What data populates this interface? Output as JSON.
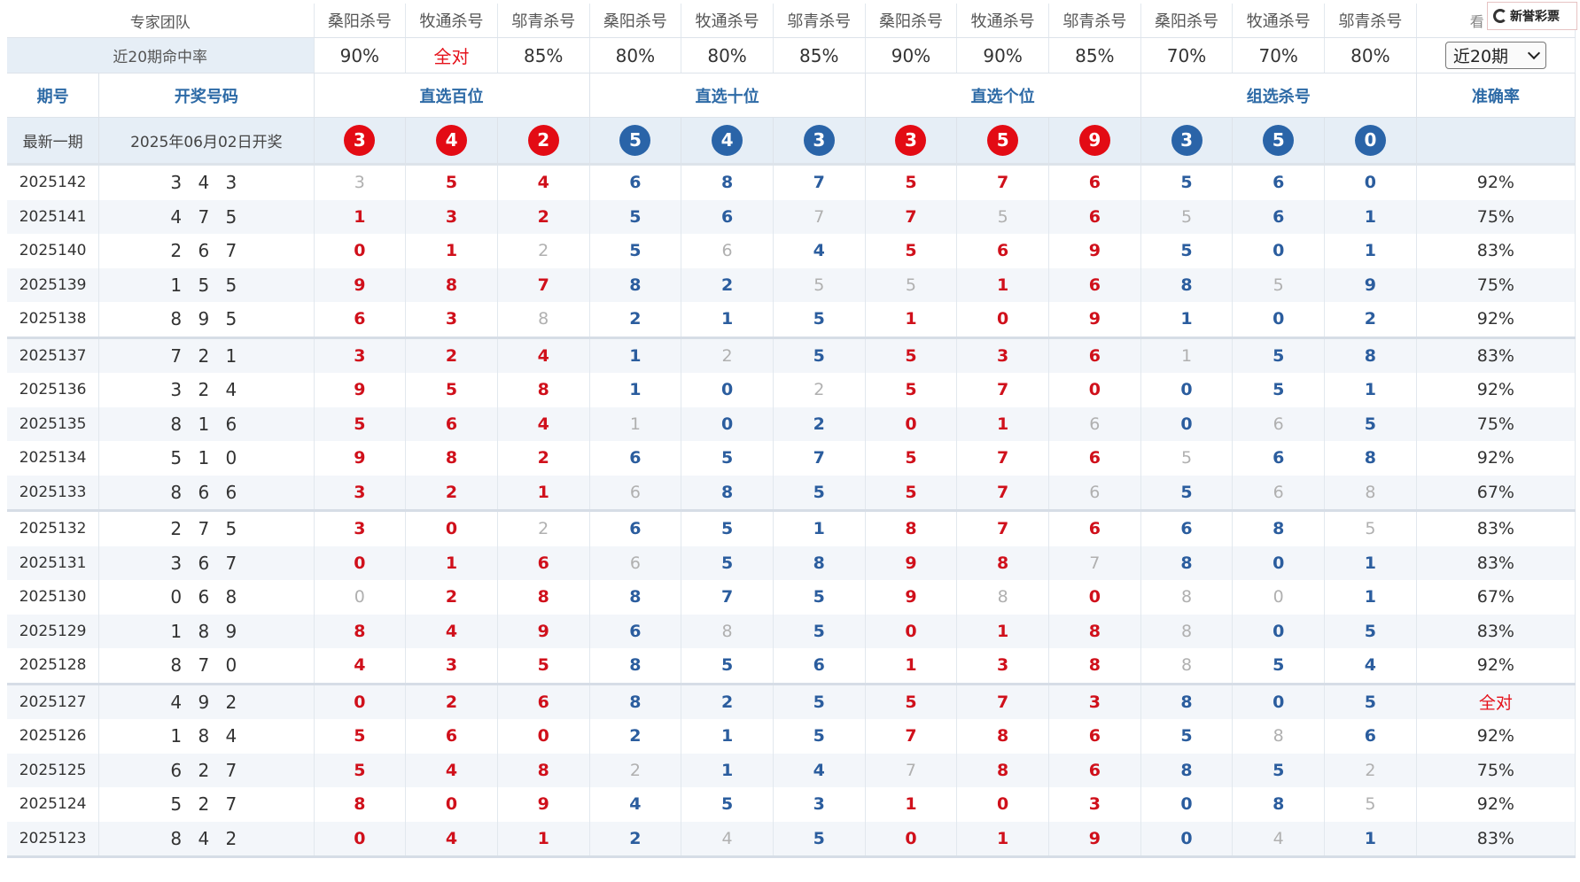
{
  "expert_row": {
    "label": "专家团队",
    "experts": [
      "桑阳杀号",
      "牧通杀号",
      "邬青杀号",
      "桑阳杀号",
      "牧通杀号",
      "邬青杀号",
      "桑阳杀号",
      "牧通杀号",
      "邬青杀号",
      "桑阳杀号",
      "牧通杀号",
      "邬青杀号"
    ],
    "last_partial": "看"
  },
  "rate_row": {
    "label": "近20期命中率",
    "rates": [
      "90%",
      "全对",
      "85%",
      "80%",
      "80%",
      "85%",
      "90%",
      "90%",
      "85%",
      "70%",
      "70%",
      "80%"
    ],
    "period_select": "近20期"
  },
  "header": {
    "period": "期号",
    "draw": "开奖号码",
    "groups": [
      "直选百位",
      "直选十位",
      "直选个位",
      "组选杀号"
    ],
    "accuracy": "准确率"
  },
  "latest": {
    "label": "最新一期",
    "date": "2025年06月02日开奖",
    "balls": [
      {
        "v": "3",
        "c": "red"
      },
      {
        "v": "4",
        "c": "red"
      },
      {
        "v": "2",
        "c": "red"
      },
      {
        "v": "5",
        "c": "blue"
      },
      {
        "v": "4",
        "c": "blue"
      },
      {
        "v": "3",
        "c": "blue"
      },
      {
        "v": "3",
        "c": "red"
      },
      {
        "v": "5",
        "c": "red"
      },
      {
        "v": "9",
        "c": "red"
      },
      {
        "v": "3",
        "c": "blue"
      },
      {
        "v": "5",
        "c": "blue"
      },
      {
        "v": "0",
        "c": "blue"
      }
    ]
  },
  "brand": {
    "name": "新誉彩票"
  },
  "rows": [
    {
      "period": "2025142",
      "nums": "3 4 3",
      "cells": [
        "3",
        "5",
        "4",
        "6",
        "8",
        "7",
        "5",
        "7",
        "6",
        "5",
        "6",
        "0"
      ],
      "miss": [
        0
      ],
      "acc": "92%"
    },
    {
      "period": "2025141",
      "nums": "4 7 5",
      "cells": [
        "1",
        "3",
        "2",
        "5",
        "6",
        "7",
        "7",
        "5",
        "6",
        "5",
        "6",
        "1"
      ],
      "miss": [
        5,
        7,
        9
      ],
      "acc": "75%"
    },
    {
      "period": "2025140",
      "nums": "2 6 7",
      "cells": [
        "0",
        "1",
        "2",
        "5",
        "6",
        "4",
        "5",
        "6",
        "9",
        "5",
        "0",
        "1"
      ],
      "miss": [
        2,
        4
      ],
      "acc": "83%"
    },
    {
      "period": "2025139",
      "nums": "1 5 5",
      "cells": [
        "9",
        "8",
        "7",
        "8",
        "2",
        "5",
        "5",
        "1",
        "6",
        "8",
        "5",
        "9"
      ],
      "miss": [
        5,
        6,
        10
      ],
      "acc": "75%"
    },
    {
      "period": "2025138",
      "nums": "8 9 5",
      "cells": [
        "6",
        "3",
        "8",
        "2",
        "1",
        "5",
        "1",
        "0",
        "9",
        "1",
        "0",
        "2"
      ],
      "miss": [
        2
      ],
      "acc": "92%"
    },
    {
      "period": "2025137",
      "nums": "7 2 1",
      "cells": [
        "3",
        "2",
        "4",
        "1",
        "2",
        "5",
        "5",
        "3",
        "6",
        "1",
        "5",
        "8"
      ],
      "miss": [
        4,
        9
      ],
      "acc": "83%"
    },
    {
      "period": "2025136",
      "nums": "3 2 4",
      "cells": [
        "9",
        "5",
        "8",
        "1",
        "0",
        "2",
        "5",
        "7",
        "0",
        "0",
        "5",
        "1"
      ],
      "miss": [
        5
      ],
      "acc": "92%"
    },
    {
      "period": "2025135",
      "nums": "8 1 6",
      "cells": [
        "5",
        "6",
        "4",
        "1",
        "0",
        "2",
        "0",
        "1",
        "6",
        "0",
        "6",
        "5"
      ],
      "miss": [
        3,
        8,
        10
      ],
      "acc": "75%"
    },
    {
      "period": "2025134",
      "nums": "5 1 0",
      "cells": [
        "9",
        "8",
        "2",
        "6",
        "5",
        "7",
        "5",
        "7",
        "6",
        "5",
        "6",
        "8"
      ],
      "miss": [
        9
      ],
      "acc": "92%"
    },
    {
      "period": "2025133",
      "nums": "8 6 6",
      "cells": [
        "3",
        "2",
        "1",
        "6",
        "8",
        "5",
        "5",
        "7",
        "6",
        "5",
        "6",
        "8"
      ],
      "miss": [
        3,
        8,
        10,
        11
      ],
      "acc": "67%"
    },
    {
      "period": "2025132",
      "nums": "2 7 5",
      "cells": [
        "3",
        "0",
        "2",
        "6",
        "5",
        "1",
        "8",
        "7",
        "6",
        "6",
        "8",
        "5"
      ],
      "miss": [
        2,
        11
      ],
      "acc": "83%"
    },
    {
      "period": "2025131",
      "nums": "3 6 7",
      "cells": [
        "0",
        "1",
        "6",
        "6",
        "5",
        "8",
        "9",
        "8",
        "7",
        "8",
        "0",
        "1"
      ],
      "miss": [
        3,
        8
      ],
      "acc": "83%"
    },
    {
      "period": "2025130",
      "nums": "0 6 8",
      "cells": [
        "0",
        "2",
        "8",
        "8",
        "7",
        "5",
        "9",
        "8",
        "0",
        "8",
        "0",
        "1"
      ],
      "miss": [
        0,
        7,
        9,
        10
      ],
      "acc": "67%"
    },
    {
      "period": "2025129",
      "nums": "1 8 9",
      "cells": [
        "8",
        "4",
        "9",
        "6",
        "8",
        "5",
        "0",
        "1",
        "8",
        "8",
        "0",
        "5"
      ],
      "miss": [
        4,
        9
      ],
      "acc": "83%"
    },
    {
      "period": "2025128",
      "nums": "8 7 0",
      "cells": [
        "4",
        "3",
        "5",
        "8",
        "5",
        "6",
        "1",
        "3",
        "8",
        "8",
        "5",
        "4"
      ],
      "miss": [
        9
      ],
      "acc": "92%"
    },
    {
      "period": "2025127",
      "nums": "4 9 2",
      "cells": [
        "0",
        "2",
        "6",
        "8",
        "2",
        "5",
        "5",
        "7",
        "3",
        "8",
        "0",
        "5"
      ],
      "miss": [],
      "acc": "全对"
    },
    {
      "period": "2025126",
      "nums": "1 8 4",
      "cells": [
        "5",
        "6",
        "0",
        "2",
        "1",
        "5",
        "7",
        "8",
        "6",
        "5",
        "8",
        "6"
      ],
      "miss": [
        10
      ],
      "acc": "92%"
    },
    {
      "period": "2025125",
      "nums": "6 2 7",
      "cells": [
        "5",
        "4",
        "8",
        "2",
        "1",
        "4",
        "7",
        "8",
        "6",
        "8",
        "5",
        "2"
      ],
      "miss": [
        3,
        6,
        11
      ],
      "acc": "75%"
    },
    {
      "period": "2025124",
      "nums": "5 2 7",
      "cells": [
        "8",
        "0",
        "9",
        "4",
        "5",
        "3",
        "1",
        "0",
        "3",
        "0",
        "8",
        "5"
      ],
      "miss": [
        11
      ],
      "acc": "92%"
    },
    {
      "period": "2025123",
      "nums": "8 4 2",
      "cells": [
        "0",
        "4",
        "1",
        "2",
        "4",
        "5",
        "0",
        "1",
        "9",
        "0",
        "4",
        "1"
      ],
      "miss": [
        4,
        10
      ],
      "acc": "83%"
    }
  ]
}
